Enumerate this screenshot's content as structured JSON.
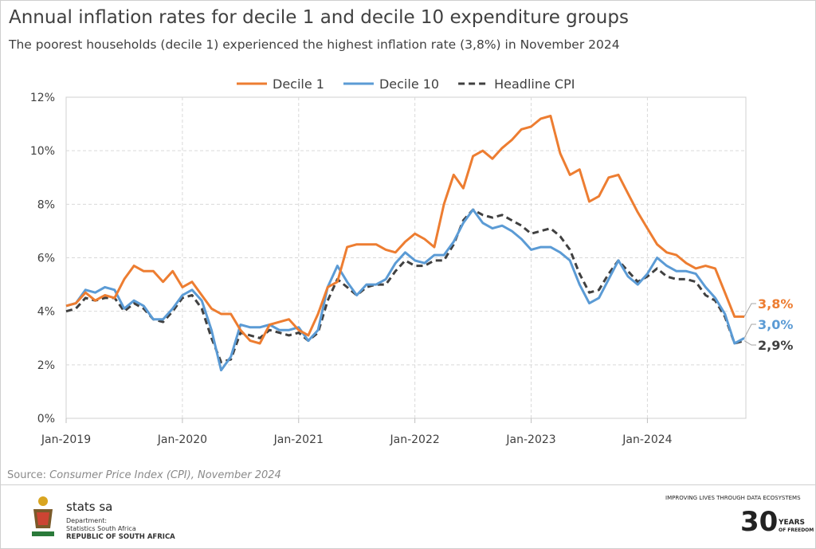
{
  "chart_data": {
    "type": "line",
    "title": "Annual inflation rates for decile 1 and decile 10 expenditure groups",
    "subtitle": "The poorest households (decile 1) experienced the highest inflation rate (3,8%) in November 2024",
    "x_start": "Jan-2019",
    "x_end": "Nov-2024",
    "x_tick_labels": [
      "Jan-2019",
      "Jan-2020",
      "Jan-2021",
      "Jan-2022",
      "Jan-2023",
      "Jan-2024"
    ],
    "y_tick_labels": [
      "0%",
      "2%",
      "4%",
      "6%",
      "8%",
      "10%",
      "12%"
    ],
    "ylim": [
      0,
      12
    ],
    "grid": true,
    "legend": "top",
    "series": [
      {
        "name": "Decile 1",
        "color": "#ED7D31",
        "style": "solid",
        "end_label": "3,8%",
        "values": [
          4.2,
          4.3,
          4.7,
          4.4,
          4.6,
          4.5,
          5.2,
          5.7,
          5.5,
          5.5,
          5.1,
          5.5,
          4.9,
          5.1,
          4.6,
          4.1,
          3.9,
          3.9,
          3.3,
          2.9,
          2.8,
          3.5,
          3.6,
          3.7,
          3.3,
          3.1,
          3.9,
          4.9,
          5.1,
          6.4,
          6.5,
          6.5,
          6.5,
          6.3,
          6.2,
          6.6,
          6.9,
          6.7,
          6.4,
          8.0,
          9.1,
          8.6,
          9.8,
          10.0,
          9.7,
          10.1,
          10.4,
          10.8,
          10.9,
          11.2,
          11.3,
          9.9,
          9.1,
          9.3,
          8.1,
          8.3,
          9.0,
          9.1,
          8.4,
          7.7,
          7.1,
          6.5,
          6.2,
          6.1,
          5.8,
          5.6,
          5.7,
          5.6,
          4.7,
          3.8,
          3.8
        ]
      },
      {
        "name": "Decile 10",
        "color": "#5B9BD5",
        "style": "solid",
        "end_label": "3,0%",
        "values": [
          4.2,
          4.3,
          4.8,
          4.7,
          4.9,
          4.8,
          4.1,
          4.4,
          4.2,
          3.7,
          3.7,
          4.1,
          4.6,
          4.8,
          4.4,
          3.3,
          1.8,
          2.3,
          3.5,
          3.4,
          3.4,
          3.5,
          3.3,
          3.3,
          3.4,
          2.9,
          3.3,
          4.9,
          5.7,
          5.1,
          4.6,
          5.0,
          5.0,
          5.2,
          5.8,
          6.2,
          5.9,
          5.8,
          6.1,
          6.1,
          6.6,
          7.3,
          7.8,
          7.3,
          7.1,
          7.2,
          7.0,
          6.7,
          6.3,
          6.4,
          6.4,
          6.2,
          5.9,
          5.0,
          4.3,
          4.5,
          5.2,
          5.9,
          5.3,
          5.0,
          5.4,
          6.0,
          5.7,
          5.5,
          5.5,
          5.4,
          4.9,
          4.5,
          3.9,
          2.8,
          3.0
        ]
      },
      {
        "name": "Headline CPI",
        "color": "#404040",
        "style": "dashed",
        "end_label": "2,9%",
        "values": [
          4.0,
          4.1,
          4.5,
          4.4,
          4.5,
          4.5,
          4.0,
          4.3,
          4.1,
          3.7,
          3.6,
          4.0,
          4.5,
          4.6,
          4.1,
          3.0,
          2.1,
          2.2,
          3.2,
          3.1,
          3.0,
          3.3,
          3.2,
          3.1,
          3.2,
          2.9,
          3.2,
          4.4,
          5.2,
          4.9,
          4.6,
          4.9,
          5.0,
          5.0,
          5.5,
          5.9,
          5.7,
          5.7,
          5.9,
          5.9,
          6.5,
          7.4,
          7.8,
          7.6,
          7.5,
          7.6,
          7.4,
          7.2,
          6.9,
          7.0,
          7.1,
          6.8,
          6.3,
          5.4,
          4.7,
          4.8,
          5.4,
          5.9,
          5.5,
          5.1,
          5.3,
          5.6,
          5.3,
          5.2,
          5.2,
          5.1,
          4.6,
          4.4,
          3.8,
          2.8,
          2.9
        ]
      }
    ],
    "source_prefix": "Source: ",
    "source_text": "Consumer Price Index (CPI), November 2024"
  },
  "footer": {
    "brand": "stats sa",
    "dept_line1": "Department:",
    "dept_line2": "Statistics South Africa",
    "dept_line3": "REPUBLIC OF SOUTH AFRICA",
    "tagline": "IMPROVING LIVES THROUGH DATA ECOSYSTEMS",
    "anniv_number": "30",
    "anniv_years": "YEARS",
    "anniv_sub": "OF FREEDOM"
  }
}
